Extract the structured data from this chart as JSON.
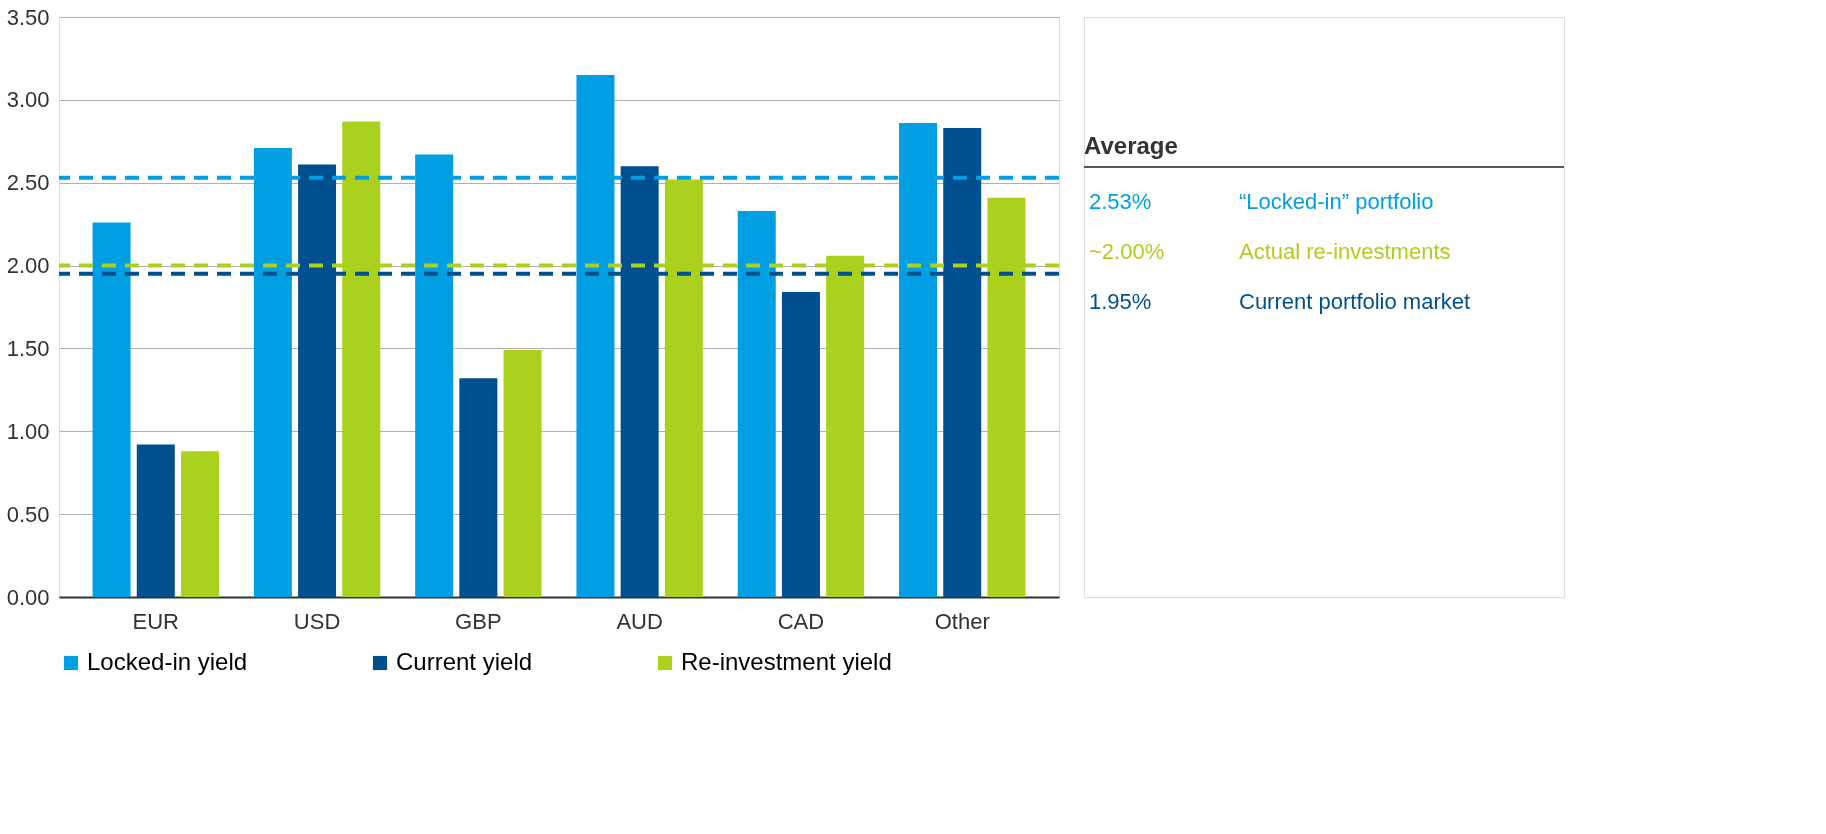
{
  "chart_data": {
    "type": "bar",
    "categories": [
      "EUR",
      "USD",
      "GBP",
      "AUD",
      "CAD",
      "Other"
    ],
    "series": [
      {
        "name": "Locked-in yield",
        "color": "#009fe3",
        "values": [
          2.26,
          2.71,
          2.67,
          3.15,
          2.33,
          2.86
        ]
      },
      {
        "name": "Current yield",
        "color": "#00508f",
        "values": [
          0.92,
          2.61,
          1.32,
          2.6,
          1.84,
          2.83
        ]
      },
      {
        "name": "Re-investment yield",
        "color": "#a9d11e",
        "values": [
          0.88,
          2.87,
          1.49,
          2.52,
          2.06,
          2.41
        ]
      }
    ],
    "ylim": [
      0,
      3.5
    ],
    "yticks": [
      {
        "value": 0,
        "label": "0.00"
      },
      {
        "value": 0.5,
        "label": "0.50"
      },
      {
        "value": 1,
        "label": "1.00"
      },
      {
        "value": 1.5,
        "label": "1.50"
      },
      {
        "value": 2,
        "label": "2.00"
      },
      {
        "value": 2.5,
        "label": "2.50"
      },
      {
        "value": 3,
        "label": "3.00"
      },
      {
        "value": 3.5,
        "label": "3.50"
      }
    ],
    "grid": "y",
    "legend": "bottom",
    "ref_lines": [
      {
        "axis": "y",
        "value": 2.53,
        "label": "2.53%",
        "color": "#009fe3",
        "line_style": "dashed"
      },
      {
        "axis": "y",
        "value": 2.0,
        "label": "~2.00%",
        "color": "#a9d11e",
        "line_style": "dashed"
      },
      {
        "axis": "y",
        "value": 1.95,
        "label": "1.95%",
        "color": "#00508f",
        "line_style": "dashed"
      }
    ],
    "annotations": [
      "Average",
      "“Locked-in” portfolio",
      "Actual re-investments",
      "Current portfolio market"
    ]
  }
}
